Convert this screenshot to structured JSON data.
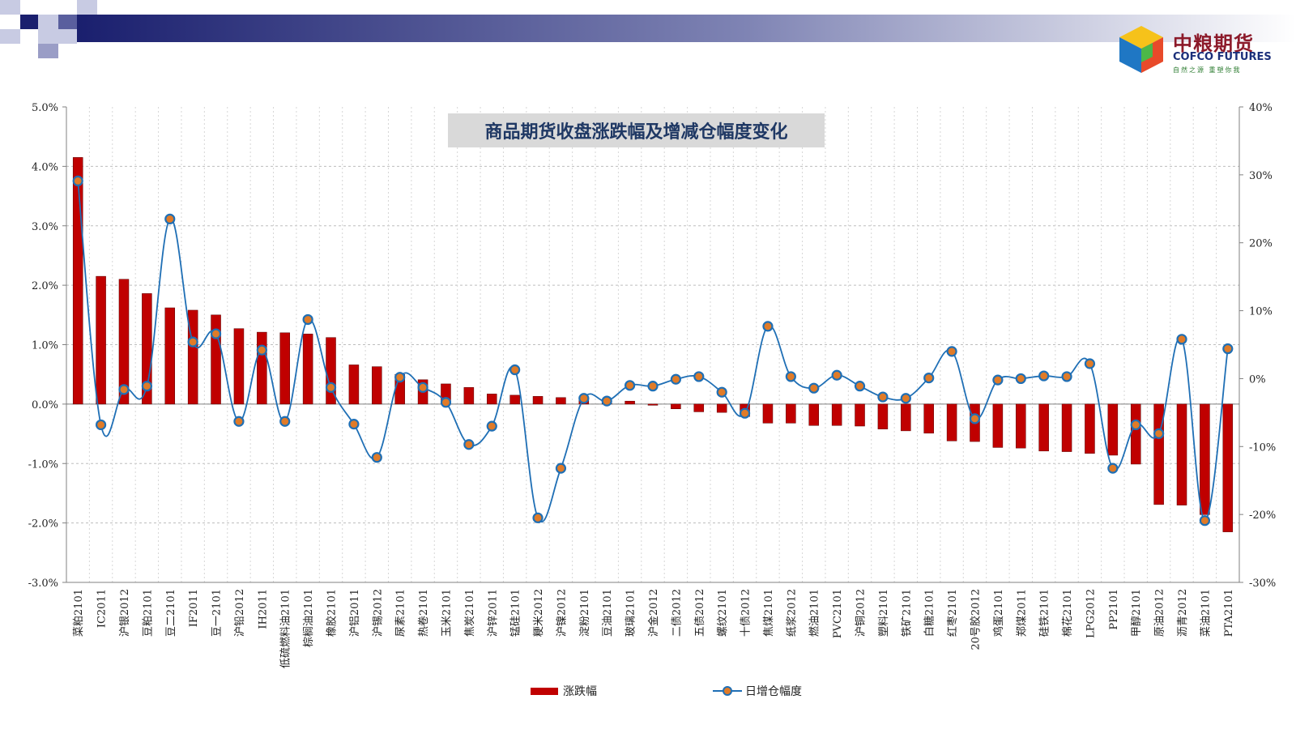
{
  "brand": {
    "name_cn": "中粮期货",
    "name_en": "COFCO FUTURES",
    "slogan": "自然之源 重塑你我",
    "colors": {
      "header_dark": "#1a1f6e",
      "bar": "#c00000",
      "line": "#1f6fb5",
      "marker_fill": "#e07b28"
    }
  },
  "chart_data": {
    "type": "bar+line",
    "title": "商品期货收盘涨跌幅及增减仓幅度变化",
    "categories": [
      "菜粕2101",
      "IC2011",
      "沪银2012",
      "豆粕2101",
      "豆二2101",
      "IF2011",
      "豆一2101",
      "沪铅2012",
      "IH2011",
      "低硫燃料油2101",
      "棕榈油2101",
      "橡胶2101",
      "沪铝2011",
      "沪锡2012",
      "尿素2101",
      "热卷2101",
      "玉米2101",
      "焦炭2101",
      "沪锌2011",
      "锰硅2101",
      "粳米2012",
      "沪镍2012",
      "淀粉2101",
      "豆油2101",
      "玻璃2101",
      "沪金2012",
      "二债2012",
      "五债2012",
      "螺纹2101",
      "十债2012",
      "焦煤2101",
      "纸浆2012",
      "燃油2101",
      "PVC2101",
      "沪铜2012",
      "塑料2101",
      "铁矿2101",
      "白糖2101",
      "红枣2101",
      "20号胶2012",
      "鸡蛋2101",
      "郑煤2011",
      "硅铁2101",
      "棉花2101",
      "LPG2012",
      "PP2101",
      "甲醇2101",
      "原油2012",
      "沥青2012",
      "菜油2101",
      "PTA2101"
    ],
    "series": [
      {
        "name": "涨跌幅",
        "kind": "bar",
        "axis": "left",
        "values": [
          4.15,
          2.15,
          2.1,
          1.86,
          1.62,
          1.58,
          1.5,
          1.27,
          1.21,
          1.2,
          1.18,
          1.12,
          0.66,
          0.63,
          0.5,
          0.41,
          0.34,
          0.28,
          0.17,
          0.15,
          0.13,
          0.11,
          0.09,
          0.07,
          0.05,
          -0.02,
          -0.08,
          -0.13,
          -0.14,
          -0.21,
          -0.32,
          -0.32,
          -0.36,
          -0.36,
          -0.37,
          -0.42,
          -0.45,
          -0.49,
          -0.62,
          -0.63,
          -0.73,
          -0.74,
          -0.79,
          -0.8,
          -0.83,
          -0.86,
          -1.01,
          -1.69,
          -1.7,
          -1.86,
          -2.15
        ]
      },
      {
        "name": "日增仓幅度",
        "kind": "line",
        "axis": "right",
        "values": [
          29.1,
          -6.8,
          -1.6,
          -1.1,
          23.5,
          5.4,
          6.6,
          -6.3,
          4.2,
          -6.3,
          8.7,
          -1.3,
          -6.7,
          -11.6,
          0.2,
          -1.3,
          -3.5,
          -9.7,
          -7.0,
          1.3,
          -20.5,
          -13.2,
          -2.9,
          -3.3,
          -1.0,
          -1.1,
          -0.1,
          0.3,
          -2.0,
          -5.1,
          7.7,
          0.3,
          -1.4,
          0.5,
          -1.1,
          -2.7,
          -2.9,
          0.1,
          4.0,
          -5.9,
          -0.2,
          0.0,
          0.4,
          0.3,
          2.2,
          -13.2,
          -6.8,
          -8.1,
          5.8,
          -20.9,
          4.4
        ]
      }
    ],
    "y_left": {
      "min": -3.0,
      "max": 5.0,
      "step": 1.0,
      "unit": "%",
      "tick_labels": [
        "-3.0%",
        "-2.0%",
        "-1.0%",
        "0.0%",
        "1.0%",
        "2.0%",
        "3.0%",
        "4.0%",
        "5.0%"
      ]
    },
    "y_right": {
      "min": -30,
      "max": 40,
      "step": 10,
      "unit": "%",
      "tick_labels": [
        "-30%",
        "-20%",
        "-10%",
        "0%",
        "10%",
        "20%",
        "30%",
        "40%"
      ]
    },
    "grid": "dashed horizontal and vertical",
    "legend": {
      "position": "bottom-center",
      "entries": [
        "涨跌幅",
        "日增仓幅度"
      ]
    }
  }
}
